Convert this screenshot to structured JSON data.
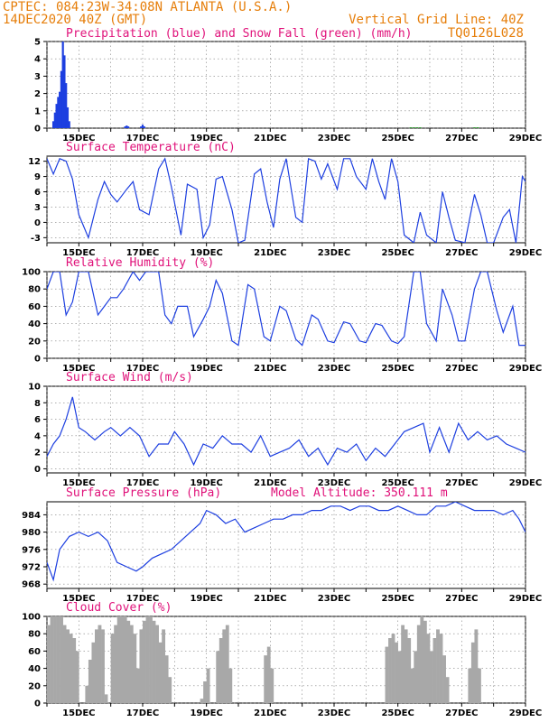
{
  "header": {
    "line1_left": "CPTEC:  084:23W-34:08N  ATLANTA (U.S.A.)",
    "line2_left": "14DEC2020 40Z (GMT)",
    "line2_right": "Vertical Grid Line: 40Z",
    "line3_right": "TQ0126L028"
  },
  "colors": {
    "header": "#e67e0a",
    "titles": "#e0127a",
    "line": "#1d3fe0",
    "precip": "#1d3fe0",
    "snow": "#22a022",
    "cloud": "#a8a8a8",
    "grid": "#808080"
  },
  "x_axis": {
    "range_days": [
      14.0,
      29.0
    ],
    "tick_labels": [
      "15DEC",
      "17DEC",
      "19DEC",
      "21DEC",
      "23DEC",
      "25DEC",
      "27DEC",
      "29DEC"
    ]
  },
  "chart_data": [
    {
      "type": "bar",
      "title": "Precipitation (blue) and Snow Fall (green) (mm/h)",
      "ylim": [
        0,
        5
      ],
      "yticks": [
        0,
        1,
        2,
        3,
        4,
        5
      ],
      "grid": true,
      "series": [
        {
          "name": "Precipitation",
          "x": [
            14.2,
            14.25,
            14.3,
            14.35,
            14.4,
            14.45,
            14.5,
            14.55,
            14.6,
            14.65,
            14.7,
            16.45,
            16.5,
            16.55,
            16.95,
            17.0,
            17.05
          ],
          "values": [
            0.4,
            0.9,
            1.4,
            1.8,
            2.1,
            3.3,
            5.0,
            4.2,
            2.6,
            1.2,
            0.4,
            0.1,
            0.15,
            0.1,
            0.1,
            0.2,
            0.1
          ]
        },
        {
          "name": "Snow Fall",
          "x": [
            25.4,
            25.5,
            25.6,
            25.7,
            27.4,
            27.5
          ],
          "values": [
            0.05,
            0.05,
            0.05,
            0.05,
            0.05,
            0.05
          ]
        }
      ]
    },
    {
      "type": "line",
      "title": "Surface Temperature (nC)",
      "ylim": [
        -4,
        13
      ],
      "yticks": [
        -3,
        0,
        3,
        6,
        9,
        12
      ],
      "grid": true,
      "x": [
        14.0,
        14.2,
        14.4,
        14.6,
        14.8,
        15.0,
        15.3,
        15.6,
        15.8,
        16.0,
        16.2,
        16.5,
        16.7,
        16.9,
        17.2,
        17.5,
        17.7,
        17.9,
        18.2,
        18.4,
        18.7,
        18.9,
        19.1,
        19.3,
        19.5,
        19.8,
        20.0,
        20.2,
        20.5,
        20.7,
        20.9,
        21.1,
        21.3,
        21.5,
        21.8,
        22.0,
        22.2,
        22.4,
        22.6,
        22.8,
        23.1,
        23.3,
        23.5,
        23.7,
        24.0,
        24.2,
        24.4,
        24.6,
        24.8,
        25.0,
        25.2,
        25.5,
        25.7,
        25.9,
        26.2,
        26.4,
        26.6,
        26.8,
        27.1,
        27.4,
        27.6,
        27.8,
        28.0,
        28.3,
        28.5,
        28.7,
        28.9,
        29.0
      ],
      "values": [
        12.5,
        9.5,
        12.5,
        12.0,
        8.5,
        1.5,
        -3.0,
        4.5,
        8.0,
        5.5,
        4.0,
        6.5,
        8.0,
        2.5,
        1.5,
        10.5,
        12.5,
        7.0,
        -2.5,
        7.5,
        6.5,
        -3.0,
        -0.5,
        8.5,
        9.0,
        2.5,
        -4.0,
        -3.5,
        9.5,
        10.5,
        4.0,
        -1.0,
        8.5,
        12.5,
        1.0,
        0.0,
        12.5,
        12.0,
        8.5,
        11.5,
        6.5,
        12.5,
        12.5,
        9.0,
        6.5,
        12.5,
        8.0,
        4.5,
        12.5,
        8.0,
        -2.5,
        -4.0,
        2.0,
        -2.5,
        -5.0,
        6.0,
        1.0,
        -3.5,
        -4.0,
        5.5,
        1.5,
        -4.0,
        -5.0,
        1.0,
        2.5,
        -4.0,
        9.0,
        8.0
      ]
    },
    {
      "type": "line",
      "title": "Relative Humidity (%)",
      "ylim": [
        0,
        100
      ],
      "yticks": [
        0,
        20,
        40,
        60,
        80,
        100
      ],
      "grid": true,
      "x": [
        14.0,
        14.2,
        14.4,
        14.6,
        14.8,
        15.0,
        15.3,
        15.6,
        15.8,
        16.0,
        16.2,
        16.4,
        16.7,
        16.9,
        17.1,
        17.3,
        17.5,
        17.7,
        17.9,
        18.1,
        18.4,
        18.6,
        18.9,
        19.1,
        19.3,
        19.5,
        19.8,
        20.0,
        20.3,
        20.5,
        20.8,
        21.0,
        21.3,
        21.5,
        21.8,
        22.0,
        22.3,
        22.5,
        22.8,
        23.0,
        23.3,
        23.5,
        23.8,
        24.0,
        24.3,
        24.5,
        24.8,
        25.0,
        25.2,
        25.5,
        25.7,
        25.9,
        26.2,
        26.4,
        26.7,
        26.9,
        27.1,
        27.4,
        27.6,
        27.8,
        28.1,
        28.3,
        28.6,
        28.8,
        29.0
      ],
      "values": [
        80,
        100,
        100,
        50,
        65,
        100,
        100,
        50,
        60,
        70,
        70,
        80,
        100,
        90,
        100,
        100,
        100,
        50,
        40,
        60,
        60,
        25,
        45,
        60,
        90,
        75,
        20,
        15,
        85,
        80,
        25,
        20,
        60,
        55,
        22,
        15,
        50,
        45,
        20,
        18,
        42,
        40,
        20,
        18,
        40,
        38,
        20,
        17,
        25,
        100,
        100,
        40,
        20,
        80,
        50,
        20,
        20,
        80,
        100,
        100,
        55,
        30,
        60,
        15,
        15
      ]
    },
    {
      "type": "line",
      "title": "Surface Wind (m/s)",
      "ylim": [
        -0.5,
        10
      ],
      "yticks": [
        0,
        2,
        4,
        6,
        8,
        10
      ],
      "grid": true,
      "x": [
        14.0,
        14.2,
        14.4,
        14.6,
        14.8,
        15.0,
        15.2,
        15.5,
        15.8,
        16.0,
        16.3,
        16.6,
        16.9,
        17.2,
        17.5,
        17.8,
        18.0,
        18.3,
        18.6,
        18.9,
        19.2,
        19.5,
        19.8,
        20.1,
        20.4,
        20.7,
        21.0,
        21.3,
        21.6,
        21.9,
        22.2,
        22.5,
        22.8,
        23.1,
        23.4,
        23.7,
        24.0,
        24.3,
        24.6,
        24.9,
        25.2,
        25.5,
        25.8,
        26.0,
        26.3,
        26.6,
        26.9,
        27.2,
        27.5,
        27.8,
        28.1,
        28.4,
        28.7,
        29.0
      ],
      "values": [
        1.5,
        3.0,
        4.0,
        6.0,
        8.7,
        5.0,
        4.5,
        3.5,
        4.5,
        5.0,
        4.0,
        5.0,
        4.0,
        1.5,
        3.0,
        3.0,
        4.5,
        3.0,
        0.5,
        3.0,
        2.5,
        4.0,
        3.0,
        3.0,
        2.0,
        4.0,
        1.5,
        2.0,
        2.5,
        3.5,
        1.5,
        2.5,
        0.5,
        2.5,
        2.0,
        3.0,
        1.0,
        2.5,
        1.5,
        3.0,
        4.5,
        5.0,
        5.5,
        2.0,
        5.0,
        2.0,
        5.5,
        3.5,
        4.5,
        3.5,
        4.0,
        3.0,
        2.5,
        2.0
      ]
    },
    {
      "type": "line",
      "title": "Surface Pressure (hPa)",
      "annotation": "Model Altitude: 350.111 m",
      "ylim": [
        967,
        987
      ],
      "yticks": [
        968,
        972,
        976,
        980,
        984
      ],
      "grid": true,
      "x": [
        14.0,
        14.2,
        14.4,
        14.7,
        15.0,
        15.3,
        15.6,
        15.9,
        16.2,
        16.5,
        16.8,
        17.0,
        17.3,
        17.6,
        17.9,
        18.2,
        18.5,
        18.8,
        19.0,
        19.3,
        19.6,
        19.9,
        20.2,
        20.5,
        20.8,
        21.1,
        21.4,
        21.7,
        22.0,
        22.3,
        22.6,
        22.9,
        23.2,
        23.5,
        23.8,
        24.1,
        24.4,
        24.7,
        25.0,
        25.3,
        25.6,
        25.9,
        26.2,
        26.5,
        26.8,
        27.1,
        27.4,
        27.7,
        28.0,
        28.3,
        28.6,
        28.8,
        29.0
      ],
      "values": [
        973,
        969,
        976,
        979,
        980,
        979,
        980,
        978,
        973,
        972,
        971,
        972,
        974,
        975,
        976,
        978,
        980,
        982,
        985,
        984,
        982,
        983,
        980,
        981,
        982,
        983,
        983,
        984,
        984,
        985,
        985,
        986,
        986,
        985,
        986,
        986,
        985,
        985,
        986,
        985,
        984,
        984,
        986,
        986,
        987,
        986,
        985,
        985,
        985,
        984,
        985,
        983,
        980
      ]
    },
    {
      "type": "bar",
      "title": "Cloud Cover (%)",
      "ylim": [
        0,
        100
      ],
      "yticks": [
        0,
        20,
        40,
        60,
        80,
        100
      ],
      "grid": true,
      "x": [
        14.0,
        14.1,
        14.2,
        14.3,
        14.4,
        14.5,
        14.6,
        14.7,
        14.8,
        14.9,
        15.0,
        15.1,
        15.2,
        15.3,
        15.4,
        15.5,
        15.6,
        15.7,
        15.8,
        15.9,
        16.0,
        16.1,
        16.2,
        16.3,
        16.4,
        16.5,
        16.6,
        16.7,
        16.8,
        16.9,
        17.0,
        17.1,
        17.2,
        17.3,
        17.4,
        17.5,
        17.6,
        17.7,
        17.8,
        17.9,
        18.0,
        18.1,
        18.2,
        18.3,
        18.4,
        18.5,
        18.6,
        18.7,
        18.8,
        18.9,
        19.0,
        19.1,
        19.2,
        19.3,
        19.4,
        19.5,
        19.6,
        19.7,
        19.8,
        19.9,
        20.0,
        20.1,
        20.2,
        20.3,
        20.4,
        20.5,
        20.6,
        20.7,
        20.8,
        20.9,
        21.0,
        24.6,
        24.7,
        24.8,
        24.9,
        25.0,
        25.1,
        25.2,
        25.3,
        25.4,
        25.5,
        25.6,
        25.7,
        25.8,
        25.9,
        26.0,
        26.1,
        26.2,
        26.3,
        26.4,
        26.5,
        26.6,
        26.7,
        26.8,
        26.9,
        27.0,
        27.1,
        27.2,
        27.3,
        27.4,
        27.5,
        27.6,
        27.7,
        27.8,
        27.9,
        28.0,
        28.1,
        28.2,
        28.3,
        28.4,
        28.5,
        28.6,
        28.7,
        28.8,
        28.9,
        29.0
      ],
      "values": [
        90,
        100,
        100,
        100,
        100,
        90,
        85,
        80,
        75,
        60,
        0,
        0,
        20,
        50,
        70,
        85,
        90,
        85,
        10,
        0,
        80,
        90,
        100,
        100,
        100,
        95,
        90,
        80,
        40,
        85,
        95,
        100,
        100,
        95,
        90,
        70,
        85,
        55,
        30,
        0,
        0,
        0,
        0,
        0,
        0,
        0,
        0,
        0,
        5,
        25,
        40,
        0,
        0,
        60,
        75,
        85,
        90,
        40,
        0,
        0,
        0,
        0,
        0,
        0,
        0,
        0,
        0,
        0,
        55,
        65,
        40,
        65,
        75,
        80,
        70,
        60,
        90,
        85,
        75,
        40,
        60,
        90,
        100,
        95,
        80,
        60,
        75,
        85,
        80,
        55,
        30,
        0,
        0,
        0,
        0,
        0,
        0,
        40,
        70,
        85,
        40,
        0,
        0,
        0,
        0,
        0,
        0,
        0,
        0,
        0,
        0,
        0,
        0,
        0,
        0,
        0
      ]
    }
  ]
}
